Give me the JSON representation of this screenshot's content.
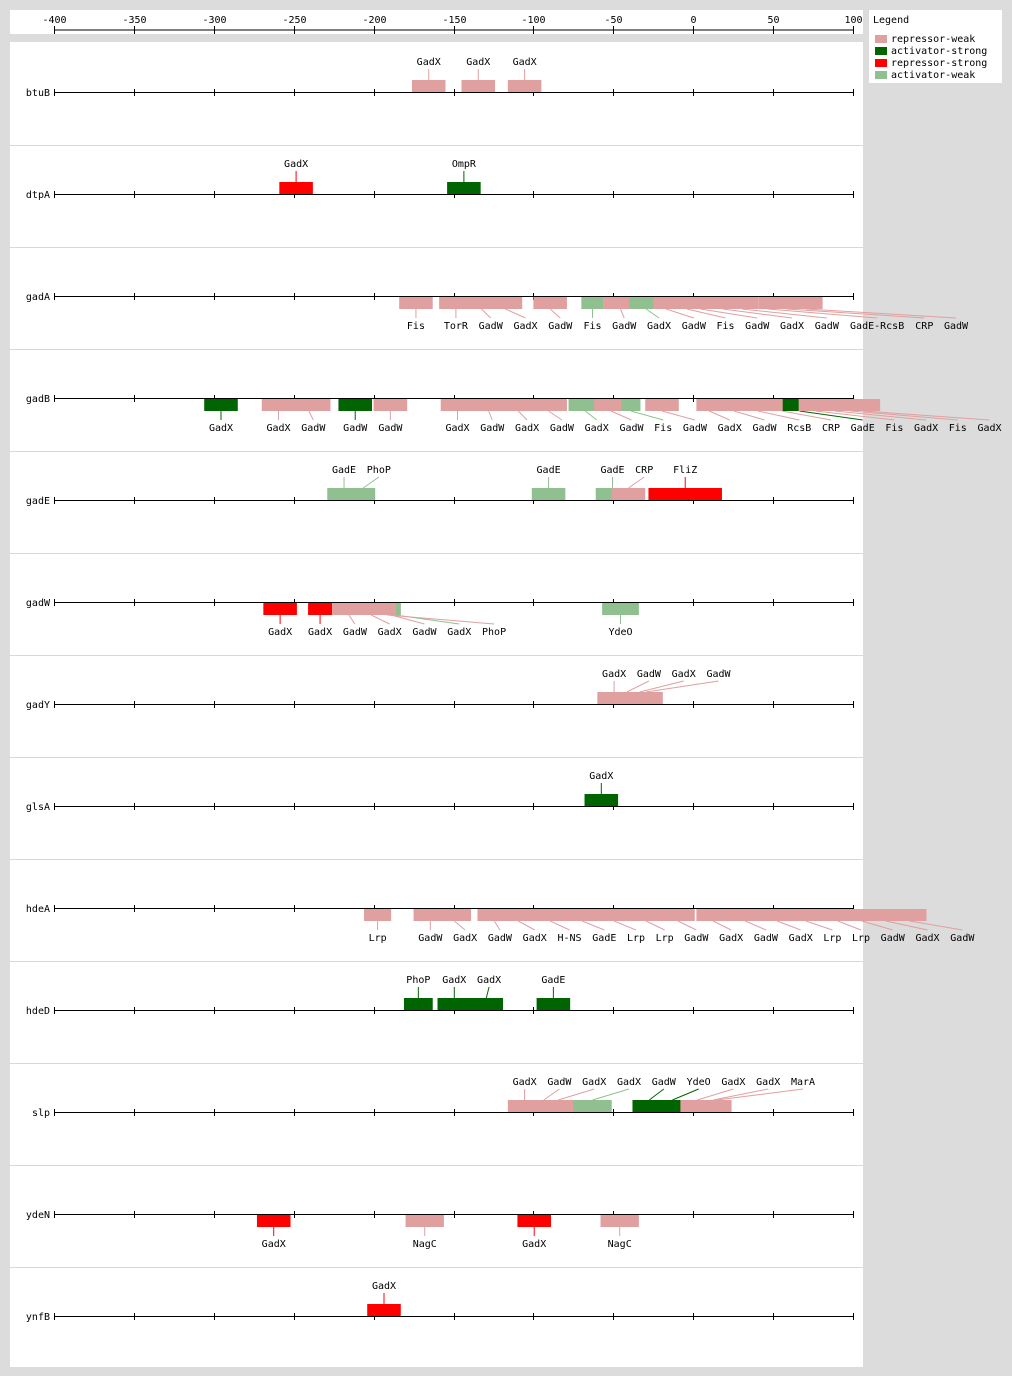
{
  "axis": {
    "ticks": [
      -400,
      -350,
      -300,
      -250,
      -200,
      -150,
      -100,
      -50,
      0,
      50,
      100
    ],
    "range": [
      -400,
      100
    ]
  },
  "legend": {
    "title": "Legend",
    "items": [
      {
        "label": "repressor-weak",
        "color": "#e0a0a0"
      },
      {
        "label": "activator-strong",
        "color": "#006400"
      },
      {
        "label": "repressor-strong",
        "color": "#ff0000"
      },
      {
        "label": "activator-weak",
        "color": "#90c090"
      }
    ]
  },
  "colors": {
    "rw": "#e0a0a0",
    "as": "#006400",
    "rs": "#ff0000",
    "aw": "#90c090",
    "divider": "#d8d8d8"
  },
  "genes": [
    {
      "name": "btuB",
      "label_pos": "above",
      "sites": [
        {
          "tf": "GadX",
          "start": -176,
          "end": -155,
          "type": "rw"
        },
        {
          "tf": "GadX",
          "start": -145,
          "end": -124,
          "type": "rw"
        },
        {
          "tf": "GadX",
          "start": -116,
          "end": -95,
          "type": "rw"
        }
      ]
    },
    {
      "name": "dtpA",
      "label_pos": "above",
      "sites": [
        {
          "tf": "GadX",
          "start": -259,
          "end": -238,
          "type": "rs"
        },
        {
          "tf": "OmpR",
          "start": -154,
          "end": -133,
          "type": "as"
        }
      ]
    },
    {
      "name": "gadA",
      "label_pos": "below",
      "sites": [
        {
          "tf": "Fis",
          "start": -184,
          "end": -163,
          "type": "rw"
        },
        {
          "tf": "TorR",
          "start": -159,
          "end": -138,
          "type": "rw"
        },
        {
          "tf": "GadW",
          "start": -143,
          "end": -122,
          "type": "rw"
        },
        {
          "tf": "GadX",
          "start": -128,
          "end": -107,
          "type": "rw"
        },
        {
          "tf": "GadW",
          "start": -100,
          "end": -79,
          "type": "rw"
        },
        {
          "tf": "Fis",
          "start": -70,
          "end": -56,
          "type": "aw"
        },
        {
          "tf": "GadW",
          "start": -56,
          "end": -35,
          "type": "rw"
        },
        {
          "tf": "GadX",
          "start": -40,
          "end": -19,
          "type": "aw"
        },
        {
          "tf": "GadW",
          "start": -25,
          "end": -9,
          "type": "rw"
        },
        {
          "tf": "Fis",
          "start": -12,
          "end": 4,
          "type": "rw"
        },
        {
          "tf": "GadW",
          "start": -6,
          "end": 15,
          "type": "rw"
        },
        {
          "tf": "GadX",
          "start": 8,
          "end": 29,
          "type": "rw"
        },
        {
          "tf": "GadW",
          "start": 20,
          "end": 41,
          "type": "rw"
        },
        {
          "tf": "GadE-RcsB",
          "start": 41,
          "end": 52,
          "type": "rw"
        },
        {
          "tf": "CRP",
          "start": 48,
          "end": 69,
          "type": "rw"
        },
        {
          "tf": "GadW",
          "start": 60,
          "end": 81,
          "type": "rw"
        }
      ]
    },
    {
      "name": "gadB",
      "label_pos": "below",
      "sites": [
        {
          "tf": "GadX",
          "start": -306,
          "end": -285,
          "type": "as"
        },
        {
          "tf": "GadX",
          "start": -270,
          "end": -249,
          "type": "rw"
        },
        {
          "tf": "GadW",
          "start": -254,
          "end": -227,
          "type": "rw"
        },
        {
          "tf": "GadW",
          "start": -222,
          "end": -201,
          "type": "as"
        },
        {
          "tf": "GadW",
          "start": -200,
          "end": -179,
          "type": "rw"
        },
        {
          "tf": "GadX",
          "start": -158,
          "end": -137,
          "type": "rw"
        },
        {
          "tf": "GadW",
          "start": -140,
          "end": -116,
          "type": "rw"
        },
        {
          "tf": "GadX",
          "start": -120,
          "end": -99,
          "type": "rw"
        },
        {
          "tf": "GadW",
          "start": -102,
          "end": -79,
          "type": "rw"
        },
        {
          "tf": "GadX",
          "start": -78,
          "end": -57,
          "type": "aw"
        },
        {
          "tf": "GadW",
          "start": -62,
          "end": -41,
          "type": "rw"
        },
        {
          "tf": "Fis",
          "start": -45,
          "end": -33,
          "type": "aw"
        },
        {
          "tf": "GadW",
          "start": -30,
          "end": -9,
          "type": "rw"
        },
        {
          "tf": "GadX",
          "start": 2,
          "end": 18,
          "type": "rw"
        },
        {
          "tf": "GadW",
          "start": 15,
          "end": 36,
          "type": "rw"
        },
        {
          "tf": "RcsB",
          "start": 30,
          "end": 51,
          "type": "rw"
        },
        {
          "tf": "CRP",
          "start": 45,
          "end": 66,
          "type": "rw"
        },
        {
          "tf": "GadE",
          "start": 56,
          "end": 77,
          "type": "as"
        },
        {
          "tf": "Fis",
          "start": 66,
          "end": 87,
          "type": "rw"
        },
        {
          "tf": "GadX",
          "start": 78,
          "end": 99,
          "type": "rw"
        },
        {
          "tf": "Fis",
          "start": 88,
          "end": 109,
          "type": "rw"
        },
        {
          "tf": "GadX",
          "start": 96,
          "end": 117,
          "type": "rw"
        }
      ]
    },
    {
      "name": "gadE",
      "label_pos": "above",
      "sites": [
        {
          "tf": "GadE",
          "start": -229,
          "end": -208,
          "type": "aw"
        },
        {
          "tf": "PhoP",
          "start": -214,
          "end": -199,
          "type": "aw"
        },
        {
          "tf": "GadE",
          "start": -101,
          "end": -80,
          "type": "aw"
        },
        {
          "tf": "GadE",
          "start": -61,
          "end": -40,
          "type": "aw"
        },
        {
          "tf": "CRP",
          "start": -51,
          "end": -30,
          "type": "rw"
        },
        {
          "tf": "FliZ",
          "start": -28,
          "end": 18,
          "type": "rs"
        }
      ]
    },
    {
      "name": "gadW",
      "label_pos": "below",
      "sites": [
        {
          "tf": "GadX",
          "start": -269,
          "end": -248,
          "type": "rs"
        },
        {
          "tf": "GadX",
          "start": -241,
          "end": -226,
          "type": "rs"
        },
        {
          "tf": "GadW",
          "start": -226,
          "end": -205,
          "type": "rw"
        },
        {
          "tf": "GadX",
          "start": -212,
          "end": -191,
          "type": "rw"
        },
        {
          "tf": "GadW",
          "start": -195,
          "end": -183,
          "type": "rw"
        },
        {
          "tf": "GadX",
          "start": -190,
          "end": -183,
          "type": "aw"
        },
        {
          "tf": "PhoP",
          "start": -197,
          "end": -186,
          "type": "rw"
        },
        {
          "tf": "YdeO",
          "start": -57,
          "end": -34,
          "type": "aw"
        }
      ]
    },
    {
      "name": "gadY",
      "label_pos": "above",
      "sites": [
        {
          "tf": "GadX",
          "start": -60,
          "end": -39,
          "type": "rw"
        },
        {
          "tf": "GadW",
          "start": -52,
          "end": -31,
          "type": "rw"
        },
        {
          "tf": "GadX",
          "start": -44,
          "end": -23,
          "type": "rw"
        },
        {
          "tf": "GadW",
          "start": -40,
          "end": -19,
          "type": "rw"
        }
      ]
    },
    {
      "name": "glsA",
      "label_pos": "above",
      "sites": [
        {
          "tf": "GadX",
          "start": -68,
          "end": -47,
          "type": "as"
        }
      ]
    },
    {
      "name": "hdeA",
      "label_pos": "below",
      "sites": [
        {
          "tf": "Lrp",
          "start": -206,
          "end": -189,
          "type": "rw"
        },
        {
          "tf": "GadW",
          "start": -175,
          "end": -154,
          "type": "rw"
        },
        {
          "tf": "GadX",
          "start": -160,
          "end": -139,
          "type": "rw"
        },
        {
          "tf": "GadW",
          "start": -135,
          "end": -114,
          "type": "rw"
        },
        {
          "tf": "GadX",
          "start": -120,
          "end": -99,
          "type": "rw"
        },
        {
          "tf": "H-NS",
          "start": -100,
          "end": -79,
          "type": "rw"
        },
        {
          "tf": "GadE",
          "start": -80,
          "end": -59,
          "type": "rw"
        },
        {
          "tf": "Lrp",
          "start": -60,
          "end": -39,
          "type": "rw"
        },
        {
          "tf": "Lrp",
          "start": -40,
          "end": -19,
          "type": "rw"
        },
        {
          "tf": "GadW",
          "start": -20,
          "end": 1,
          "type": "rw"
        },
        {
          "tf": "GadX",
          "start": 2,
          "end": 23,
          "type": "rw"
        },
        {
          "tf": "GadW",
          "start": 22,
          "end": 43,
          "type": "rw"
        },
        {
          "tf": "GadX",
          "start": 42,
          "end": 63,
          "type": "rw"
        },
        {
          "tf": "Lrp",
          "start": 60,
          "end": 81,
          "type": "rw"
        },
        {
          "tf": "Lrp",
          "start": 80,
          "end": 101,
          "type": "rw"
        },
        {
          "tf": "GadW",
          "start": 95,
          "end": 116,
          "type": "rw"
        },
        {
          "tf": "GadX",
          "start": 110,
          "end": 131,
          "type": "rw"
        },
        {
          "tf": "GadW",
          "start": 125,
          "end": 146,
          "type": "rw"
        }
      ]
    },
    {
      "name": "hdeD",
      "label_pos": "above",
      "sites": [
        {
          "tf": "PhoP",
          "start": -181,
          "end": -163,
          "type": "as"
        },
        {
          "tf": "GadX",
          "start": -160,
          "end": -139,
          "type": "as"
        },
        {
          "tf": "GadX",
          "start": -140,
          "end": -119,
          "type": "as"
        },
        {
          "tf": "GadE",
          "start": -98,
          "end": -77,
          "type": "as"
        }
      ]
    },
    {
      "name": "slp",
      "label_pos": "above",
      "sites": [
        {
          "tf": "GadX",
          "start": -116,
          "end": -95,
          "type": "rw"
        },
        {
          "tf": "GadW",
          "start": -104,
          "end": -83,
          "type": "rw"
        },
        {
          "tf": "GadX",
          "start": -95,
          "end": -74,
          "type": "rw"
        },
        {
          "tf": "GadX",
          "start": -75,
          "end": -51,
          "type": "aw"
        },
        {
          "tf": "GadW",
          "start": -38,
          "end": -17,
          "type": "as"
        },
        {
          "tf": "YdeO",
          "start": -28,
          "end": 2,
          "type": "as"
        },
        {
          "tf": "GadX",
          "start": -8,
          "end": 13,
          "type": "rw"
        },
        {
          "tf": "GadX",
          "start": 2,
          "end": 23,
          "type": "rw"
        },
        {
          "tf": "MarA",
          "start": 5,
          "end": 24,
          "type": "rw"
        }
      ]
    },
    {
      "name": "ydeN",
      "label_pos": "below",
      "sites": [
        {
          "tf": "GadX",
          "start": -273,
          "end": -252,
          "type": "rs"
        },
        {
          "tf": "NagC",
          "start": -180,
          "end": -156,
          "type": "rw"
        },
        {
          "tf": "GadX",
          "start": -110,
          "end": -89,
          "type": "rs"
        },
        {
          "tf": "NagC",
          "start": -58,
          "end": -34,
          "type": "rw"
        }
      ]
    },
    {
      "name": "ynfB",
      "label_pos": "above",
      "sites": [
        {
          "tf": "GadX",
          "start": -204,
          "end": -183,
          "type": "rs"
        }
      ]
    }
  ]
}
